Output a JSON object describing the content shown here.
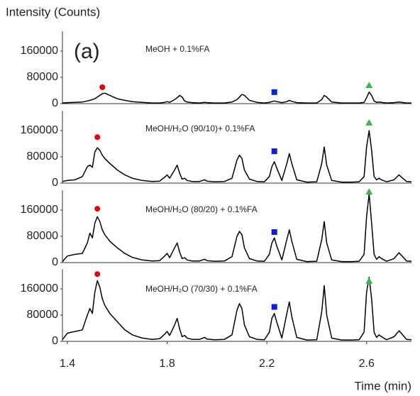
{
  "figure": {
    "ylabel": "Intensity (Counts)",
    "xlabel": "Time (min)",
    "panel_label": "(a)"
  },
  "chart_data": [
    {
      "type": "line",
      "title": "MeOH + 0.1%FA",
      "color": "#000000",
      "xlim": [
        1.38,
        2.78
      ],
      "ylim": [
        0,
        220000
      ],
      "yticks": [
        0,
        80000,
        160000
      ],
      "x": [
        1.38,
        1.4,
        1.43,
        1.46,
        1.48,
        1.49,
        1.5,
        1.51,
        1.52,
        1.53,
        1.54,
        1.55,
        1.57,
        1.6,
        1.63,
        1.66,
        1.7,
        1.74,
        1.77,
        1.79,
        1.8,
        1.81,
        1.83,
        1.84,
        1.85,
        1.86,
        1.87,
        1.88,
        1.9,
        1.93,
        1.95,
        1.96,
        1.99,
        2.03,
        2.06,
        2.08,
        2.09,
        2.1,
        2.11,
        2.13,
        2.16,
        2.19,
        2.21,
        2.22,
        2.23,
        2.24,
        2.26,
        2.28,
        2.29,
        2.3,
        2.32,
        2.36,
        2.4,
        2.42,
        2.43,
        2.44,
        2.46,
        2.5,
        2.54,
        2.57,
        2.59,
        2.6,
        2.61,
        2.62,
        2.63,
        2.64,
        2.65,
        2.66,
        2.68,
        2.71,
        2.73,
        2.74,
        2.76,
        2.78
      ],
      "values": [
        2000,
        3000,
        4000,
        5000,
        8000,
        10000,
        12000,
        15000,
        20000,
        25000,
        30000,
        32000,
        25000,
        15000,
        10000,
        6000,
        4000,
        2000,
        2000,
        4000,
        6000,
        4000,
        12000,
        18000,
        25000,
        20000,
        8000,
        5000,
        3000,
        2000,
        4000,
        3000,
        2000,
        2000,
        5000,
        12000,
        20000,
        28000,
        25000,
        10000,
        4000,
        2000,
        4000,
        6000,
        8000,
        6000,
        3000,
        6000,
        10000,
        7000,
        3000,
        2000,
        2000,
        12000,
        25000,
        20000,
        5000,
        2000,
        2000,
        2000,
        4000,
        18000,
        35000,
        25000,
        8000,
        4000,
        5000,
        4000,
        2000,
        3000,
        5000,
        4000,
        2000,
        2000
      ],
      "markers": [
        {
          "shape": "circle",
          "color": "#e8000b",
          "x": 1.54,
          "y": 50000
        },
        {
          "shape": "square",
          "color": "#0a1ee6",
          "x": 2.23,
          "y": 35000
        },
        {
          "shape": "triangle",
          "color": "#3cb44b",
          "x": 2.61,
          "y": 56000
        }
      ]
    },
    {
      "type": "line",
      "title": "MeOH/H₂O (90/10)+ 0.1%FA",
      "color": "#000000",
      "xlim": [
        1.38,
        2.78
      ],
      "ylim": [
        0,
        220000
      ],
      "yticks": [
        0,
        80000,
        160000
      ],
      "x": [
        1.38,
        1.4,
        1.43,
        1.46,
        1.48,
        1.49,
        1.5,
        1.51,
        1.52,
        1.53,
        1.54,
        1.55,
        1.57,
        1.6,
        1.63,
        1.66,
        1.7,
        1.74,
        1.77,
        1.79,
        1.8,
        1.81,
        1.83,
        1.84,
        1.85,
        1.86,
        1.87,
        1.88,
        1.9,
        1.93,
        1.95,
        1.96,
        1.99,
        2.03,
        2.06,
        2.08,
        2.09,
        2.1,
        2.11,
        2.13,
        2.16,
        2.19,
        2.21,
        2.22,
        2.23,
        2.24,
        2.26,
        2.28,
        2.29,
        2.3,
        2.32,
        2.36,
        2.4,
        2.42,
        2.43,
        2.44,
        2.46,
        2.5,
        2.54,
        2.57,
        2.59,
        2.6,
        2.61,
        2.62,
        2.63,
        2.64,
        2.65,
        2.66,
        2.68,
        2.71,
        2.73,
        2.74,
        2.76,
        2.78
      ],
      "values": [
        5000,
        8000,
        10000,
        20000,
        50000,
        55000,
        48000,
        95000,
        108000,
        100000,
        85000,
        75000,
        60000,
        40000,
        25000,
        15000,
        8000,
        5000,
        6000,
        18000,
        25000,
        15000,
        40000,
        55000,
        30000,
        12000,
        15000,
        8000,
        5000,
        5000,
        10000,
        6000,
        4000,
        5000,
        15000,
        70000,
        85000,
        75000,
        40000,
        12000,
        5000,
        4000,
        20000,
        50000,
        65000,
        45000,
        8000,
        60000,
        90000,
        60000,
        10000,
        3000,
        4000,
        60000,
        110000,
        55000,
        8000,
        3000,
        3000,
        4000,
        20000,
        110000,
        160000,
        100000,
        20000,
        10000,
        15000,
        10000,
        4000,
        10000,
        25000,
        18000,
        5000,
        4000
      ],
      "markers": [
        {
          "shape": "circle",
          "color": "#e8000b",
          "x": 1.52,
          "y": 140000
        },
        {
          "shape": "square",
          "color": "#0a1ee6",
          "x": 2.23,
          "y": 97000
        },
        {
          "shape": "triangle",
          "color": "#3cb44b",
          "x": 2.61,
          "y": 184000
        }
      ]
    },
    {
      "type": "line",
      "title": "MeOH/H₂O (80/20) + 0.1%FA",
      "color": "#000000",
      "xlim": [
        1.38,
        2.78
      ],
      "ylim": [
        0,
        220000
      ],
      "yticks": [
        0,
        80000,
        160000
      ],
      "x": [
        1.38,
        1.4,
        1.43,
        1.46,
        1.48,
        1.49,
        1.5,
        1.51,
        1.52,
        1.53,
        1.54,
        1.55,
        1.57,
        1.6,
        1.63,
        1.66,
        1.7,
        1.74,
        1.77,
        1.79,
        1.8,
        1.81,
        1.83,
        1.84,
        1.85,
        1.86,
        1.87,
        1.88,
        1.9,
        1.93,
        1.95,
        1.96,
        1.99,
        2.03,
        2.06,
        2.08,
        2.09,
        2.1,
        2.11,
        2.13,
        2.16,
        2.19,
        2.21,
        2.22,
        2.23,
        2.24,
        2.26,
        2.28,
        2.29,
        2.3,
        2.32,
        2.36,
        2.4,
        2.42,
        2.43,
        2.44,
        2.46,
        2.5,
        2.54,
        2.57,
        2.59,
        2.6,
        2.61,
        2.62,
        2.63,
        2.64,
        2.65,
        2.66,
        2.68,
        2.71,
        2.73,
        2.74,
        2.76,
        2.78
      ],
      "values": [
        3000,
        20000,
        25000,
        28000,
        60000,
        90000,
        75000,
        120000,
        140000,
        125000,
        100000,
        85000,
        65000,
        45000,
        28000,
        16000,
        8000,
        5000,
        6000,
        20000,
        28000,
        15000,
        45000,
        60000,
        32000,
        12000,
        15000,
        8000,
        5000,
        5000,
        10000,
        6000,
        4000,
        5000,
        18000,
        80000,
        95000,
        85000,
        45000,
        12000,
        5000,
        4000,
        25000,
        60000,
        75000,
        50000,
        8000,
        70000,
        100000,
        65000,
        10000,
        3000,
        4000,
        70000,
        125000,
        60000,
        8000,
        3000,
        3000,
        4000,
        25000,
        140000,
        210000,
        120000,
        25000,
        10000,
        18000,
        12000,
        4000,
        12000,
        30000,
        22000,
        5000,
        4000
      ],
      "markers": [
        {
          "shape": "circle",
          "color": "#e8000b",
          "x": 1.52,
          "y": 164000
        },
        {
          "shape": "square",
          "color": "#0a1ee6",
          "x": 2.23,
          "y": 93000
        },
        {
          "shape": "triangle",
          "color": "#3cb44b",
          "x": 2.61,
          "y": 216000
        }
      ]
    },
    {
      "type": "line",
      "title": "MeOH/H₂O (70/30) + 0.1%FA",
      "color": "#000000",
      "xlim": [
        1.38,
        2.78
      ],
      "ylim": [
        0,
        220000
      ],
      "yticks": [
        0,
        80000,
        160000
      ],
      "xticks": [
        1.4,
        1.8,
        2.2,
        2.6
      ],
      "x": [
        1.38,
        1.4,
        1.43,
        1.46,
        1.48,
        1.49,
        1.5,
        1.51,
        1.52,
        1.53,
        1.54,
        1.55,
        1.57,
        1.6,
        1.63,
        1.66,
        1.7,
        1.74,
        1.77,
        1.79,
        1.8,
        1.81,
        1.83,
        1.84,
        1.85,
        1.86,
        1.87,
        1.88,
        1.9,
        1.93,
        1.95,
        1.96,
        1.99,
        2.03,
        2.06,
        2.08,
        2.09,
        2.1,
        2.11,
        2.13,
        2.16,
        2.19,
        2.21,
        2.22,
        2.23,
        2.24,
        2.26,
        2.28,
        2.29,
        2.3,
        2.32,
        2.36,
        2.4,
        2.42,
        2.43,
        2.44,
        2.46,
        2.5,
        2.54,
        2.57,
        2.59,
        2.6,
        2.61,
        2.62,
        2.63,
        2.64,
        2.65,
        2.66,
        2.68,
        2.71,
        2.73,
        2.74,
        2.76,
        2.78
      ],
      "values": [
        5000,
        25000,
        30000,
        35000,
        80000,
        100000,
        85000,
        150000,
        185000,
        165000,
        130000,
        110000,
        85000,
        60000,
        35000,
        20000,
        10000,
        6000,
        8000,
        22000,
        30000,
        18000,
        50000,
        70000,
        38000,
        14000,
        18000,
        10000,
        6000,
        6000,
        12000,
        7000,
        5000,
        6000,
        20000,
        95000,
        115000,
        100000,
        50000,
        14000,
        6000,
        5000,
        28000,
        70000,
        85000,
        58000,
        10000,
        85000,
        120000,
        75000,
        12000,
        4000,
        5000,
        90000,
        170000,
        80000,
        10000,
        4000,
        4000,
        5000,
        28000,
        150000,
        195000,
        130000,
        28000,
        12000,
        20000,
        14000,
        5000,
        14000,
        32000,
        24000,
        6000,
        5000
      ],
      "markers": [
        {
          "shape": "circle",
          "color": "#e8000b",
          "x": 1.52,
          "y": 205000
        },
        {
          "shape": "square",
          "color": "#0a1ee6",
          "x": 2.23,
          "y": 105000
        },
        {
          "shape": "triangle",
          "color": "#3cb44b",
          "x": 2.61,
          "y": 184000
        }
      ]
    }
  ]
}
